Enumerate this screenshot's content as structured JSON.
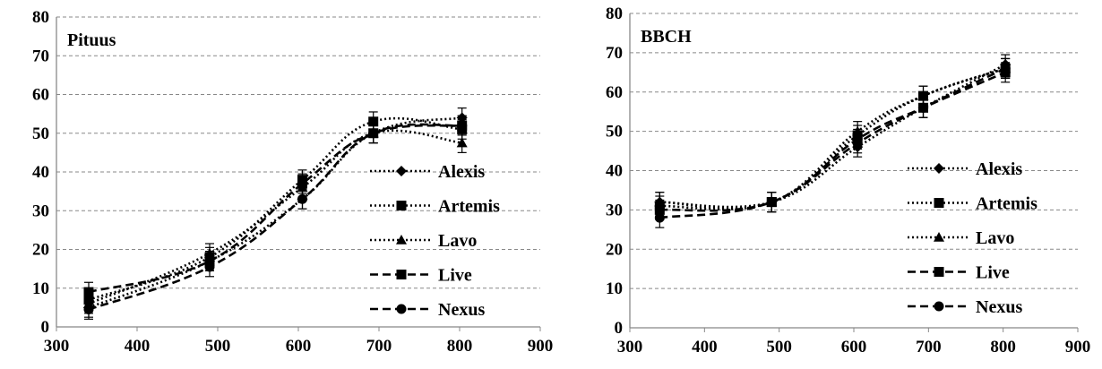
{
  "chart_data": [
    {
      "type": "line",
      "title": "Pituus",
      "xlabel": "",
      "ylabel": "",
      "xlim": [
        300,
        900
      ],
      "ylim": [
        0,
        80
      ],
      "xticks": [
        300,
        400,
        500,
        600,
        700,
        800,
        900
      ],
      "yticks": [
        0,
        10,
        20,
        30,
        40,
        50,
        60,
        70,
        80
      ],
      "grid": "horizontal dashed",
      "legend_position": "right",
      "x": [
        340,
        490,
        605,
        693,
        803
      ],
      "series": [
        {
          "name": "Alexis",
          "style": "dotted",
          "marker": "diamond",
          "values": [
            5,
            17,
            33,
            50,
            54
          ]
        },
        {
          "name": "Artemis",
          "style": "dotted",
          "marker": "square",
          "values": [
            7,
            18,
            38,
            53,
            51
          ]
        },
        {
          "name": "Lavo",
          "style": "dotted",
          "marker": "triangle",
          "values": [
            6,
            19,
            36,
            50,
            47.5
          ]
        },
        {
          "name": "Live",
          "style": "dashed",
          "marker": "square",
          "values": [
            9,
            17,
            37,
            50,
            52
          ]
        },
        {
          "name": "Nexus",
          "style": "dashed",
          "marker": "circle",
          "values": [
            4.5,
            15.5,
            33,
            50,
            52
          ]
        }
      ],
      "error_bar": 2.5
    },
    {
      "type": "line",
      "title": "BBCH",
      "xlabel": "",
      "ylabel": "",
      "xlim": [
        300,
        900
      ],
      "ylim": [
        0,
        80
      ],
      "xticks": [
        300,
        400,
        500,
        600,
        700,
        800,
        900
      ],
      "yticks": [
        0,
        10,
        20,
        30,
        40,
        50,
        60,
        70,
        80
      ],
      "grid": "horizontal dashed",
      "legend_position": "right",
      "x": [
        340,
        490,
        605,
        693,
        803
      ],
      "series": [
        {
          "name": "Alexis",
          "style": "dotted",
          "marker": "diamond",
          "values": [
            32,
            32,
            46,
            56,
            67
          ]
        },
        {
          "name": "Artemis",
          "style": "dotted",
          "marker": "square",
          "values": [
            31,
            32,
            49,
            59,
            66
          ]
        },
        {
          "name": "Lavo",
          "style": "dotted",
          "marker": "triangle",
          "values": [
            32,
            32,
            50,
            59,
            66
          ]
        },
        {
          "name": "Live",
          "style": "dashed",
          "marker": "square",
          "values": [
            30,
            32,
            48,
            56,
            65
          ]
        },
        {
          "name": "Nexus",
          "style": "dashed",
          "marker": "circle",
          "values": [
            28,
            32,
            47,
            56,
            66
          ]
        }
      ],
      "error_bar": 2.5
    }
  ]
}
